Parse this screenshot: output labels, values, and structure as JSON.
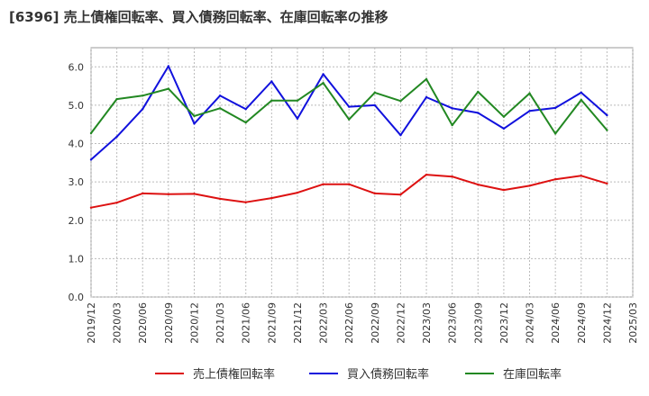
{
  "chart_data": {
    "type": "line",
    "title": "[6396]  売上債権回転率、買入債務回転率、在庫回転率の推移",
    "xlabel": "",
    "ylabel": "",
    "ylim": [
      0,
      6.5
    ],
    "yticks": [
      "0.0",
      "1.0",
      "2.0",
      "3.0",
      "4.0",
      "5.0",
      "6.0"
    ],
    "grid": true,
    "legend_position": "bottom",
    "categories": [
      "2019/12",
      "2020/03",
      "2020/06",
      "2020/09",
      "2020/12",
      "2021/03",
      "2021/06",
      "2021/09",
      "2021/12",
      "2022/03",
      "2022/06",
      "2022/09",
      "2022/12",
      "2023/03",
      "2023/06",
      "2023/09",
      "2023/12",
      "2024/03",
      "2024/06",
      "2024/09",
      "2024/12",
      "2025/03"
    ],
    "series": [
      {
        "name": "売上債権回転率",
        "color": "#dd1111",
        "values": [
          2.33,
          2.46,
          2.7,
          2.68,
          2.69,
          2.56,
          2.47,
          2.58,
          2.72,
          2.94,
          2.94,
          2.7,
          2.67,
          3.19,
          3.14,
          2.93,
          2.79,
          2.9,
          3.07,
          3.16,
          2.96,
          null
        ]
      },
      {
        "name": "買入債務回転率",
        "color": "#1111dd",
        "values": [
          3.58,
          4.18,
          4.9,
          6.02,
          4.52,
          5.25,
          4.9,
          5.62,
          4.65,
          5.81,
          4.96,
          5.0,
          4.22,
          5.21,
          4.92,
          4.8,
          4.39,
          4.85,
          4.93,
          5.33,
          4.74,
          null
        ]
      },
      {
        "name": "在庫回転率",
        "color": "#228822",
        "values": [
          4.27,
          5.16,
          5.25,
          5.43,
          4.72,
          4.92,
          4.55,
          5.12,
          5.12,
          5.58,
          4.63,
          5.33,
          5.11,
          5.68,
          4.48,
          5.35,
          4.7,
          5.31,
          4.26,
          5.14,
          4.35,
          null
        ]
      }
    ]
  }
}
